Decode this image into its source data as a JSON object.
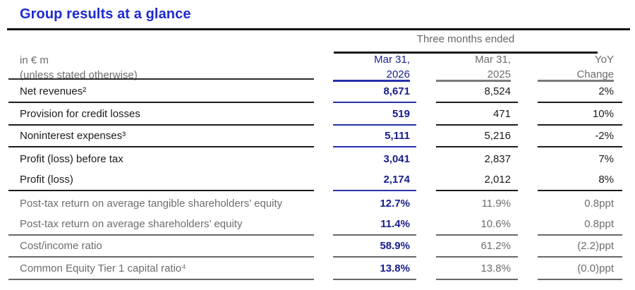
{
  "page": {
    "title": "Group results at a glance"
  },
  "colors": {
    "title_blue": "#1e2ad2",
    "value_navy": "#171d8d",
    "navy_rule": "#2631ab",
    "dark_text": "#1b1b1b",
    "muted_text": "#6d6d6d",
    "muted_rule": "#686868"
  },
  "table": {
    "period_header": "Three months ended",
    "unit_line1": "in € m",
    "unit_line2": "(unless stated otherwise)",
    "columns": [
      {
        "line1": "Mar 31,",
        "line2": "2026"
      },
      {
        "line1": "Mar 31,",
        "line2": "2025"
      },
      {
        "line1": "YoY",
        "line2": "Change"
      }
    ],
    "rows": [
      {
        "label": "Net revenues²",
        "v2026": "8,671",
        "v2025": "8,524",
        "yoy": "2%"
      },
      {
        "label": "Provision for credit losses",
        "v2026": "519",
        "v2025": "471",
        "yoy": "10%"
      },
      {
        "label": "Noninterest expenses³",
        "v2026": "5,111",
        "v2025": "5,216",
        "yoy": "-2%"
      },
      {
        "label": "Profit (loss) before tax",
        "v2026": "3,041",
        "v2025": "2,837",
        "yoy": "7%"
      },
      {
        "label": "Profit (loss)",
        "v2026": "2,174",
        "v2025": "2,012",
        "yoy": "8%"
      },
      {
        "label": "Post-tax return on average tangible shareholders’ equity",
        "v2026": "12.7%",
        "v2025": "11.9%",
        "yoy": "0.8ppt"
      },
      {
        "label": "Post-tax return on average shareholders’ equity",
        "v2026": "11.4%",
        "v2025": "10.6%",
        "yoy": "0.8ppt"
      },
      {
        "label": "Cost/income ratio",
        "v2026": "58.9%",
        "v2025": "61.2%",
        "yoy": "(2.2)ppt"
      },
      {
        "label": "Common Equity Tier 1 capital ratio⁴",
        "v2026": "13.8%",
        "v2025": "13.8%",
        "yoy": "(0.0)ppt"
      }
    ]
  }
}
